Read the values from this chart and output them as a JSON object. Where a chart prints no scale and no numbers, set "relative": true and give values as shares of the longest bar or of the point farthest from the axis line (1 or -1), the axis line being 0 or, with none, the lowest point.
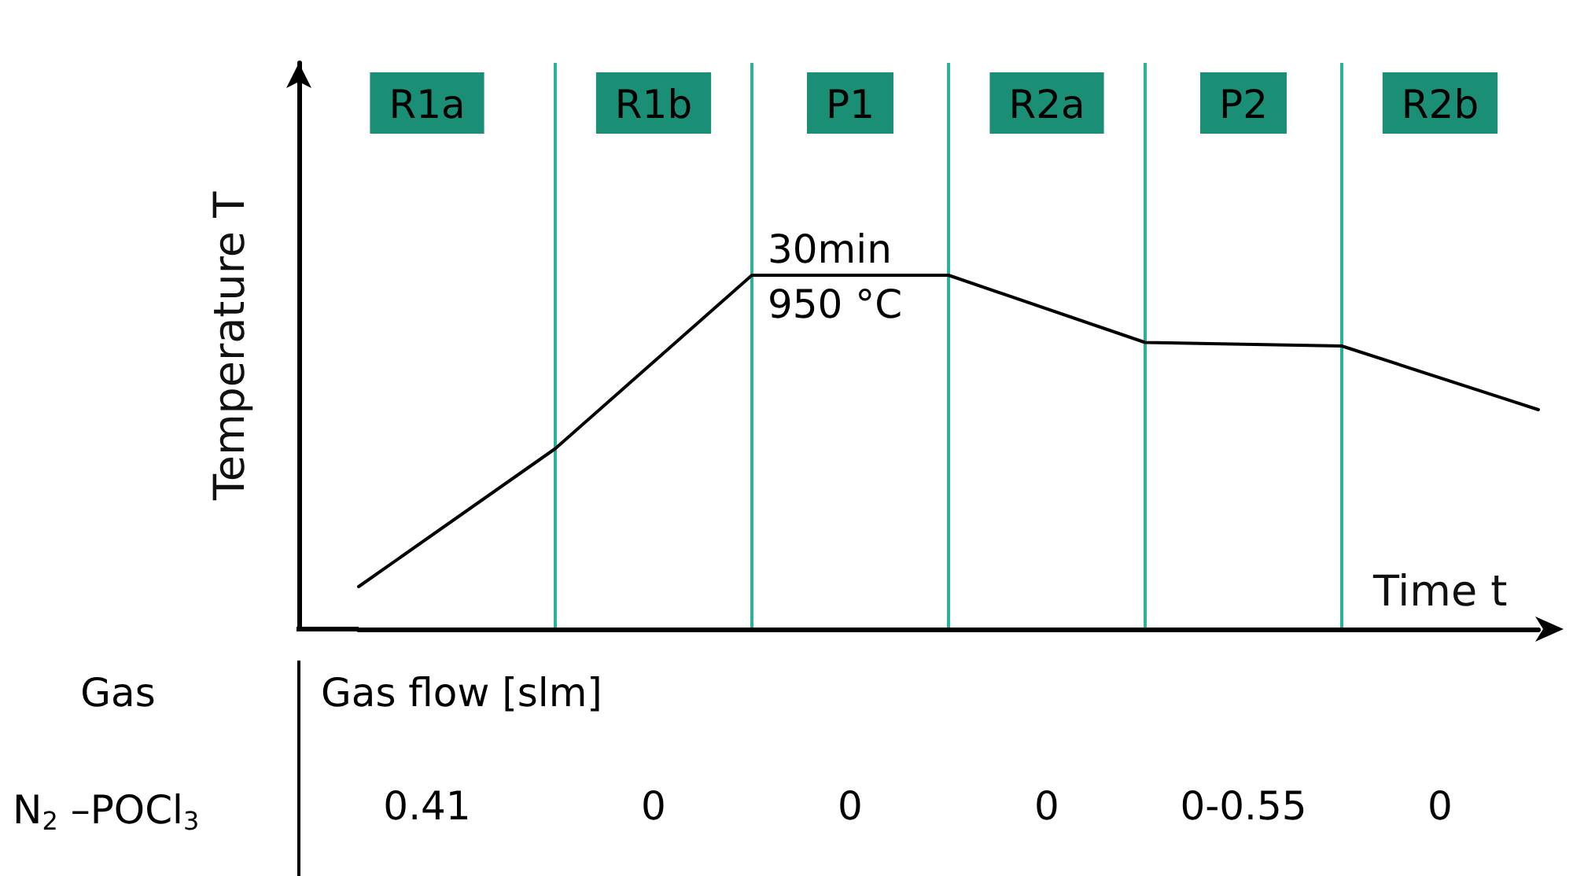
{
  "chart_data": {
    "type": "line",
    "relative": true,
    "xlabel": "Time t",
    "ylabel": "Temperature T",
    "categories": [
      null,
      null,
      null,
      null,
      null,
      null,
      null
    ],
    "series": [
      {
        "color": "#000000",
        "values": [
          0.12,
          0.51,
          1,
          1,
          0.81,
          0.8,
          0.62
        ]
      }
    ],
    "grid": "x",
    "marker": "none",
    "line_style": "solid",
    "annotations": [
      "R1a",
      "R1b",
      "P1",
      "R2a",
      "P2",
      "R2b",
      "30min",
      "950 °C",
      "Gas",
      "Gas flow [slm]",
      "N$_{2}$ –POCl$_{3}$",
      "0.41",
      "0",
      "0",
      "0",
      "0-0.55",
      "0"
    ]
  }
}
